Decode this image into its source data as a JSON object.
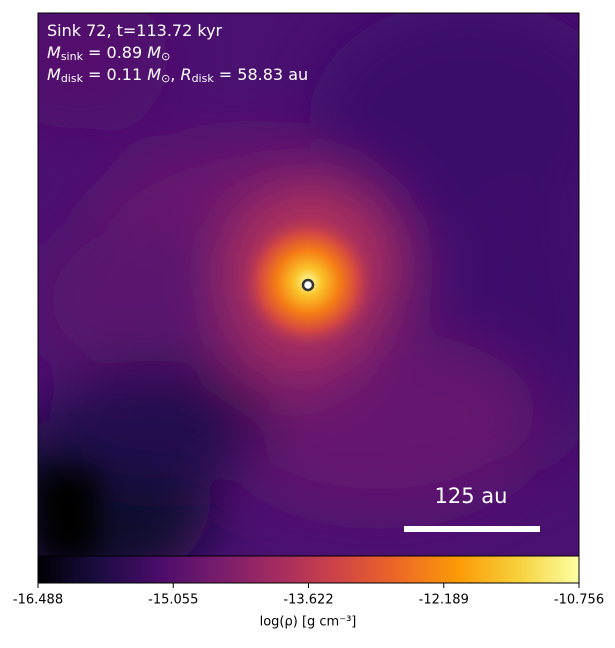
{
  "chart_data": {
    "type": "heatmap",
    "annotations": [
      [
        {
          "t": "Sink 72, t=113.72 kyr"
        }
      ],
      [
        {
          "t": "M",
          "italic": true
        },
        {
          "t": "sink",
          "sub": true
        },
        {
          "t": " = 0.89 "
        },
        {
          "t": "M",
          "italic": true
        },
        {
          "t": "⊙",
          "sub": true
        }
      ],
      [
        {
          "t": "M",
          "italic": true
        },
        {
          "t": "disk",
          "sub": true
        },
        {
          "t": " = 0.11 "
        },
        {
          "t": "M",
          "italic": true
        },
        {
          "t": "⊙",
          "sub": true
        },
        {
          "t": ", "
        },
        {
          "t": "R",
          "italic": true
        },
        {
          "t": "disk",
          "sub": true
        },
        {
          "t": " = 58.83 au"
        }
      ]
    ],
    "scale_bar_label": "125 au",
    "colorbar": {
      "label": "log(ρ) [g cm⁻³]",
      "colormap": "inferno",
      "xlim": [
        -16.488,
        -10.756
      ],
      "xticks": [
        -16.488,
        -15.055,
        -13.622,
        -12.189,
        -10.756
      ]
    }
  }
}
